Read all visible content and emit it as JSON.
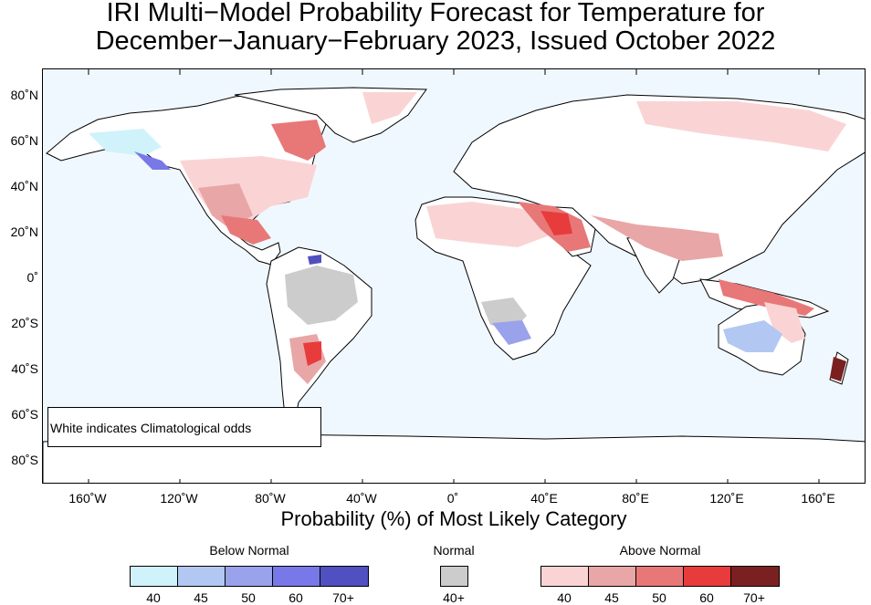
{
  "title": {
    "line1": "IRI Multi−Model Probability Forecast for Temperature for",
    "line2": "December−January−February 2023, Issued October 2022"
  },
  "map": {
    "lat_labels": [
      "80˚N",
      "60˚N",
      "40˚N",
      "20˚N",
      "0˚",
      "20˚S",
      "40˚S",
      "60˚S",
      "80˚S"
    ],
    "lon_labels": [
      "160˚W",
      "120˚W",
      "80˚W",
      "40˚W",
      "0˚",
      "40˚E",
      "80˚E",
      "120˚E",
      "160˚E"
    ],
    "ocean_color": "#f0f8ff",
    "land_color": "#ffffff",
    "note": "White indicates Climatological odds"
  },
  "legend": {
    "subtitle": "Probability (%) of Most Likely Category",
    "below_normal": {
      "title": "Below Normal",
      "labels": [
        "40",
        "45",
        "50",
        "60",
        "70+"
      ],
      "colors": [
        "#d0f2fa",
        "#b2c8f2",
        "#9aa2ec",
        "#7878e8",
        "#5050c0"
      ]
    },
    "normal": {
      "title": "Normal",
      "labels": [
        "40+"
      ],
      "colors": [
        "#cccccc"
      ]
    },
    "above_normal": {
      "title": "Above Normal",
      "labels": [
        "40",
        "45",
        "50",
        "60",
        "70+"
      ],
      "colors": [
        "#fad4d4",
        "#e8a6a6",
        "#e87878",
        "#e83c3c",
        "#7a2020"
      ]
    }
  }
}
